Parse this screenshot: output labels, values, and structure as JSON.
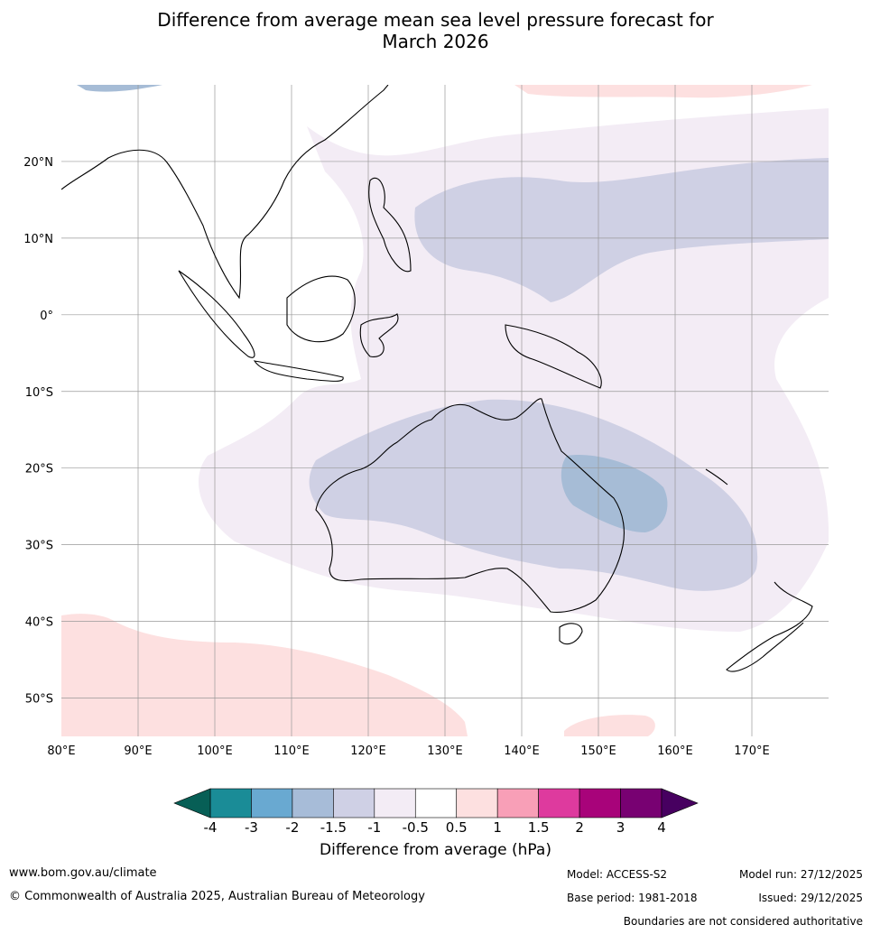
{
  "title": {
    "line1": "Difference from average mean sea level pressure forecast for",
    "line2": "March 2026"
  },
  "map": {
    "region": "Australia / Maritime Continent",
    "lon_range": [
      80,
      180
    ],
    "lat_range": [
      -55,
      30
    ],
    "lon_ticks": [
      "80°E",
      "90°E",
      "100°E",
      "110°E",
      "120°E",
      "130°E",
      "140°E",
      "150°E",
      "160°E",
      "170°E"
    ],
    "lat_ticks": [
      "20°N",
      "10°N",
      "0°",
      "10°S",
      "20°S",
      "30°S",
      "40°S",
      "50°S"
    ],
    "colors": {
      "band_neg05_0": "#f3ecf5",
      "band_neg1_neg05": "#cfd0e4",
      "band_neg15_neg1": "#a6bcd6",
      "band_0_05": "#ffffff",
      "band_05_1": "#fde0e0",
      "coastline": "#000000",
      "borders": "#888888",
      "grid": "#999999"
    }
  },
  "colorbar": {
    "label": "Difference from average (hPa)",
    "ticks": [
      "-4",
      "-3",
      "-2",
      "-1.5",
      "-1",
      "-0.5",
      "0.5",
      "1",
      "1.5",
      "2",
      "3",
      "4"
    ],
    "colors": [
      "#1a8c97",
      "#69a9d1",
      "#a7bcd8",
      "#cfd0e5",
      "#f3ecf5",
      "#ffffff",
      "#fde0e0",
      "#f89fb7",
      "#de3a9e",
      "#a8037a",
      "#780172"
    ],
    "under_color": "#075f56",
    "over_color": "#470060"
  },
  "footer": {
    "website": "www.bom.gov.au/climate",
    "copyright": "© Commonwealth of Australia 2025, Australian Bureau of Meteorology",
    "model": "Model: ACCESS-S2",
    "base_period": "Base period: 1981-2018",
    "model_run": "Model run: 27/12/2025",
    "issued": "Issued: 29/12/2025",
    "disclaimer": "Boundaries are not considered authoritative"
  }
}
